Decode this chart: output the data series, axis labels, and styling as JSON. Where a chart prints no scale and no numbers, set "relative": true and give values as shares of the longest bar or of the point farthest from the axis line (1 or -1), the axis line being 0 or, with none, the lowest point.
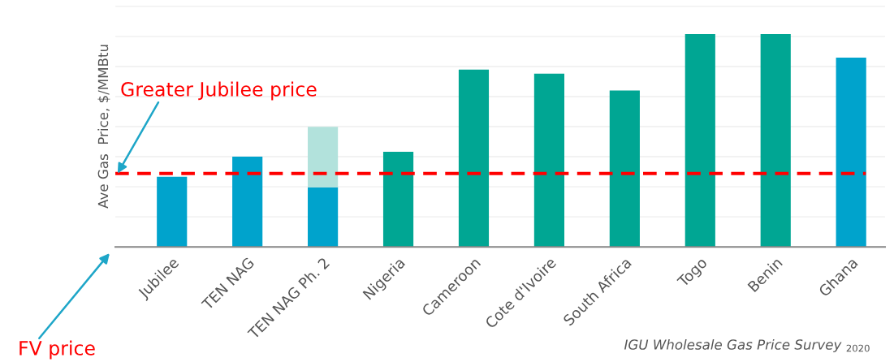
{
  "chart_data": {
    "type": "bar",
    "relative": true,
    "stacked": true,
    "ylabel": "Ave Gas  Price, $/MMBtu",
    "categories": [
      "Jubilee",
      "TEN NAG",
      "TEN NAG Ph. 2",
      "Nigeria",
      "Cameroon",
      "Cote d'Ivoire",
      "South Africa",
      "Togo",
      "Benin",
      "Ghana"
    ],
    "series": [
      {
        "values": [
          0.33,
          0.424,
          0.28,
          0.447,
          0.833,
          0.814,
          0.735,
          1,
          1,
          0.89
        ],
        "colors": [
          "#00a3cc",
          "#00a3cc",
          "#00a3cc",
          "#00a693",
          "#00a693",
          "#00a693",
          "#00a693",
          "#00a693",
          "#00a693",
          "#00a3cc"
        ]
      },
      {
        "values": [
          null,
          null,
          0.284,
          null,
          null,
          null,
          null,
          null,
          null,
          null
        ],
        "color": "#b2e2dc"
      }
    ],
    "ref_lines": [
      {
        "axis": "y",
        "value": 0.345,
        "label": "Greater Jubilee price",
        "color": "#ff0000",
        "line_style": "dashed"
      }
    ],
    "annotations": [
      "FV price",
      "IGU Wholesale Gas Price Survey $_{2020}$"
    ],
    "grid": "y"
  }
}
